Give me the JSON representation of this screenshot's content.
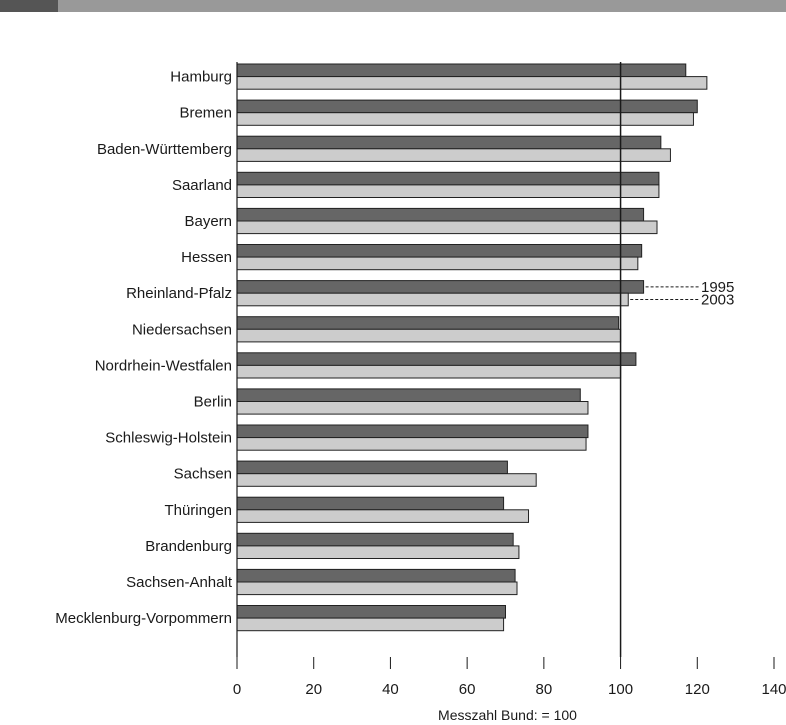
{
  "colors": {
    "bar_1995": "#666666",
    "bar_2003": "#cccccc",
    "outline": "#222222",
    "header_dark": "#555555",
    "header_light": "#999999"
  },
  "chart_data": {
    "type": "bar",
    "orientation": "horizontal",
    "title": "",
    "xlabel": "Messzahl Bund: = 100",
    "ylabel": "",
    "xlim": [
      0,
      140
    ],
    "xticks": [
      0,
      20,
      40,
      60,
      80,
      100,
      120,
      140
    ],
    "reference_line": 100,
    "grid": false,
    "categories": [
      "Hamburg",
      "Bremen",
      "Baden-Württemberg",
      "Saarland",
      "Bayern",
      "Hessen",
      "Rheinland-Pfalz",
      "Niedersachsen",
      "Nordrhein-Westfalen",
      "Berlin",
      "Schleswig-Holstein",
      "Sachsen",
      "Thüringen",
      "Brandenburg",
      "Sachsen-Anhalt",
      "Mecklenburg-Vorpommern"
    ],
    "series": [
      {
        "name": "1995",
        "values": [
          117,
          120,
          110.5,
          110,
          106,
          105.5,
          106,
          99.5,
          104,
          89.5,
          91.5,
          70.5,
          69.5,
          72,
          72.5,
          70
        ]
      },
      {
        "name": "2003",
        "values": [
          122.5,
          119,
          113,
          110,
          109.5,
          104.5,
          102,
          100,
          100,
          91.5,
          91,
          78,
          76,
          73.5,
          73,
          69.5
        ]
      }
    ],
    "series_callout": "Rheinland-Pfalz"
  }
}
